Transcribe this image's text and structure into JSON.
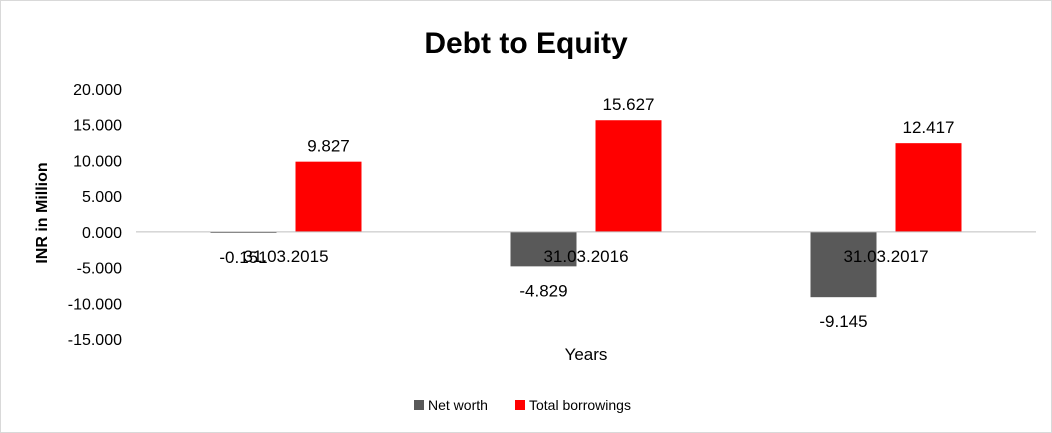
{
  "chart_data": {
    "type": "bar",
    "title": "Debt to Equity",
    "xlabel": "Years",
    "ylabel": "INR in Million",
    "categories": [
      "31.03.2015",
      "31.03.2016",
      "31.03.2017"
    ],
    "series": [
      {
        "name": "Net worth",
        "values": [
          -0.151,
          -4.829,
          -9.145
        ],
        "labels": [
          "-0.151",
          "-4.829",
          "-9.145"
        ],
        "color": "#595959"
      },
      {
        "name": "Total borrowings",
        "values": [
          9.827,
          15.627,
          12.417
        ],
        "labels": [
          "9.827",
          "15.627",
          "12.417"
        ],
        "color": "#ff0000"
      }
    ],
    "ylim": [
      -15,
      20
    ],
    "yticks": [
      20,
      15,
      10,
      5,
      0,
      -5,
      -10,
      -15
    ],
    "ytick_labels": [
      "20.000",
      "15.000",
      "10.000",
      "5.000",
      "0.000",
      "-5.000",
      "-10.000",
      "-15.000"
    ],
    "grid": false,
    "legend": "bottom"
  }
}
